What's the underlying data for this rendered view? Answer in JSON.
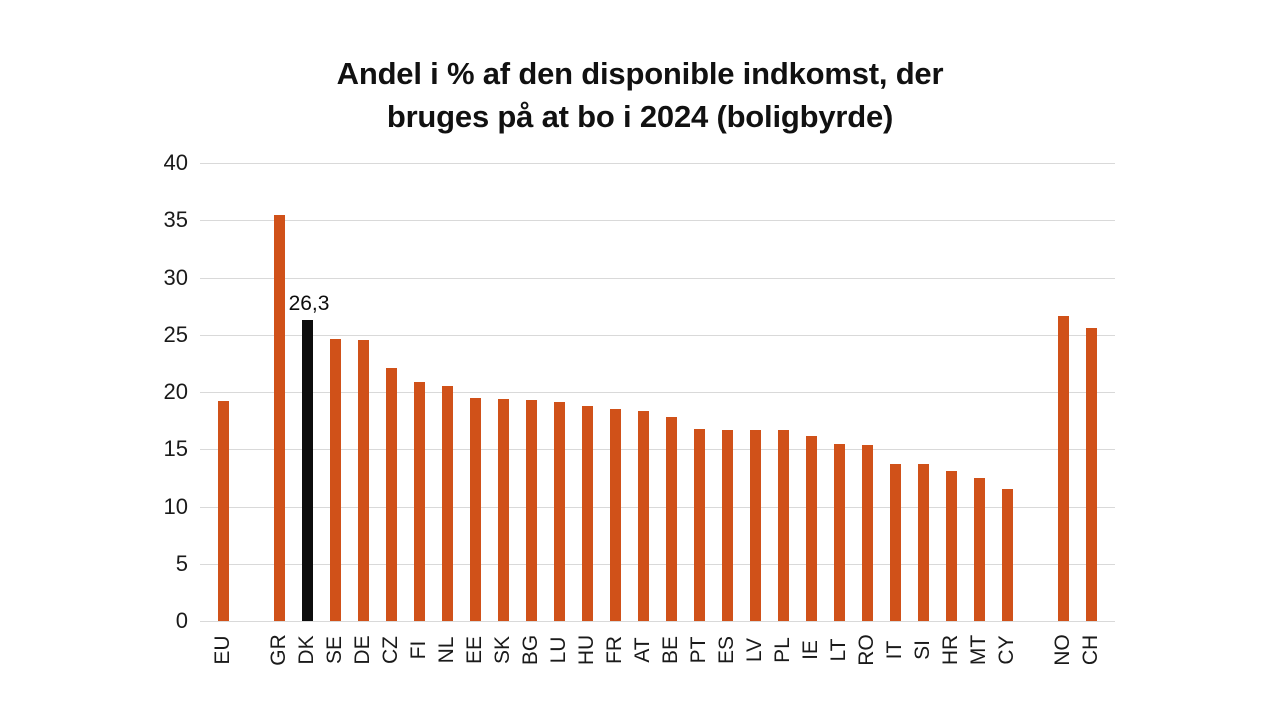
{
  "page": {
    "background": "#ffffff"
  },
  "chart_data": {
    "type": "bar",
    "title": "Andel i % af den disponible indkomst, der bruges på at bo i 2024 (boligbyrde)",
    "title_lines": [
      "Andel i % af den disponible indkomst, der",
      "bruges på at bo i 2024 (boligbyrde)"
    ],
    "categories": [
      "EU",
      "GR",
      "DK",
      "SE",
      "DE",
      "CZ",
      "FI",
      "NL",
      "EE",
      "SK",
      "BG",
      "LU",
      "HU",
      "FR",
      "AT",
      "BE",
      "PT",
      "ES",
      "LV",
      "PL",
      "IE",
      "LT",
      "RO",
      "IT",
      "SI",
      "HR",
      "MT",
      "CY",
      "NO",
      "CH"
    ],
    "values": [
      19.2,
      35.5,
      26.3,
      24.6,
      24.5,
      22.1,
      20.9,
      20.5,
      19.5,
      19.4,
      19.3,
      19.1,
      18.8,
      18.5,
      18.3,
      17.8,
      16.8,
      16.7,
      16.7,
      16.7,
      16.2,
      15.5,
      15.4,
      13.7,
      13.7,
      13.1,
      12.5,
      11.5,
      26.6,
      25.6
    ],
    "xlabel": "",
    "ylabel": "",
    "y_ticks": [
      0,
      5,
      10,
      15,
      20,
      25,
      30,
      35,
      40
    ],
    "ylim": [
      0,
      40
    ],
    "grid": "horizontal-only",
    "legend": "none",
    "group_breaks_after": [
      "EU",
      "CY"
    ],
    "highlight": {
      "category": "DK",
      "color": "#0d0d0d",
      "data_label": "26,3"
    },
    "colors": {
      "bar": "#d05119",
      "highlight_bar": "#0d0d0d",
      "gridline": "#d9d9d9",
      "text": "#1a1a1a"
    }
  }
}
